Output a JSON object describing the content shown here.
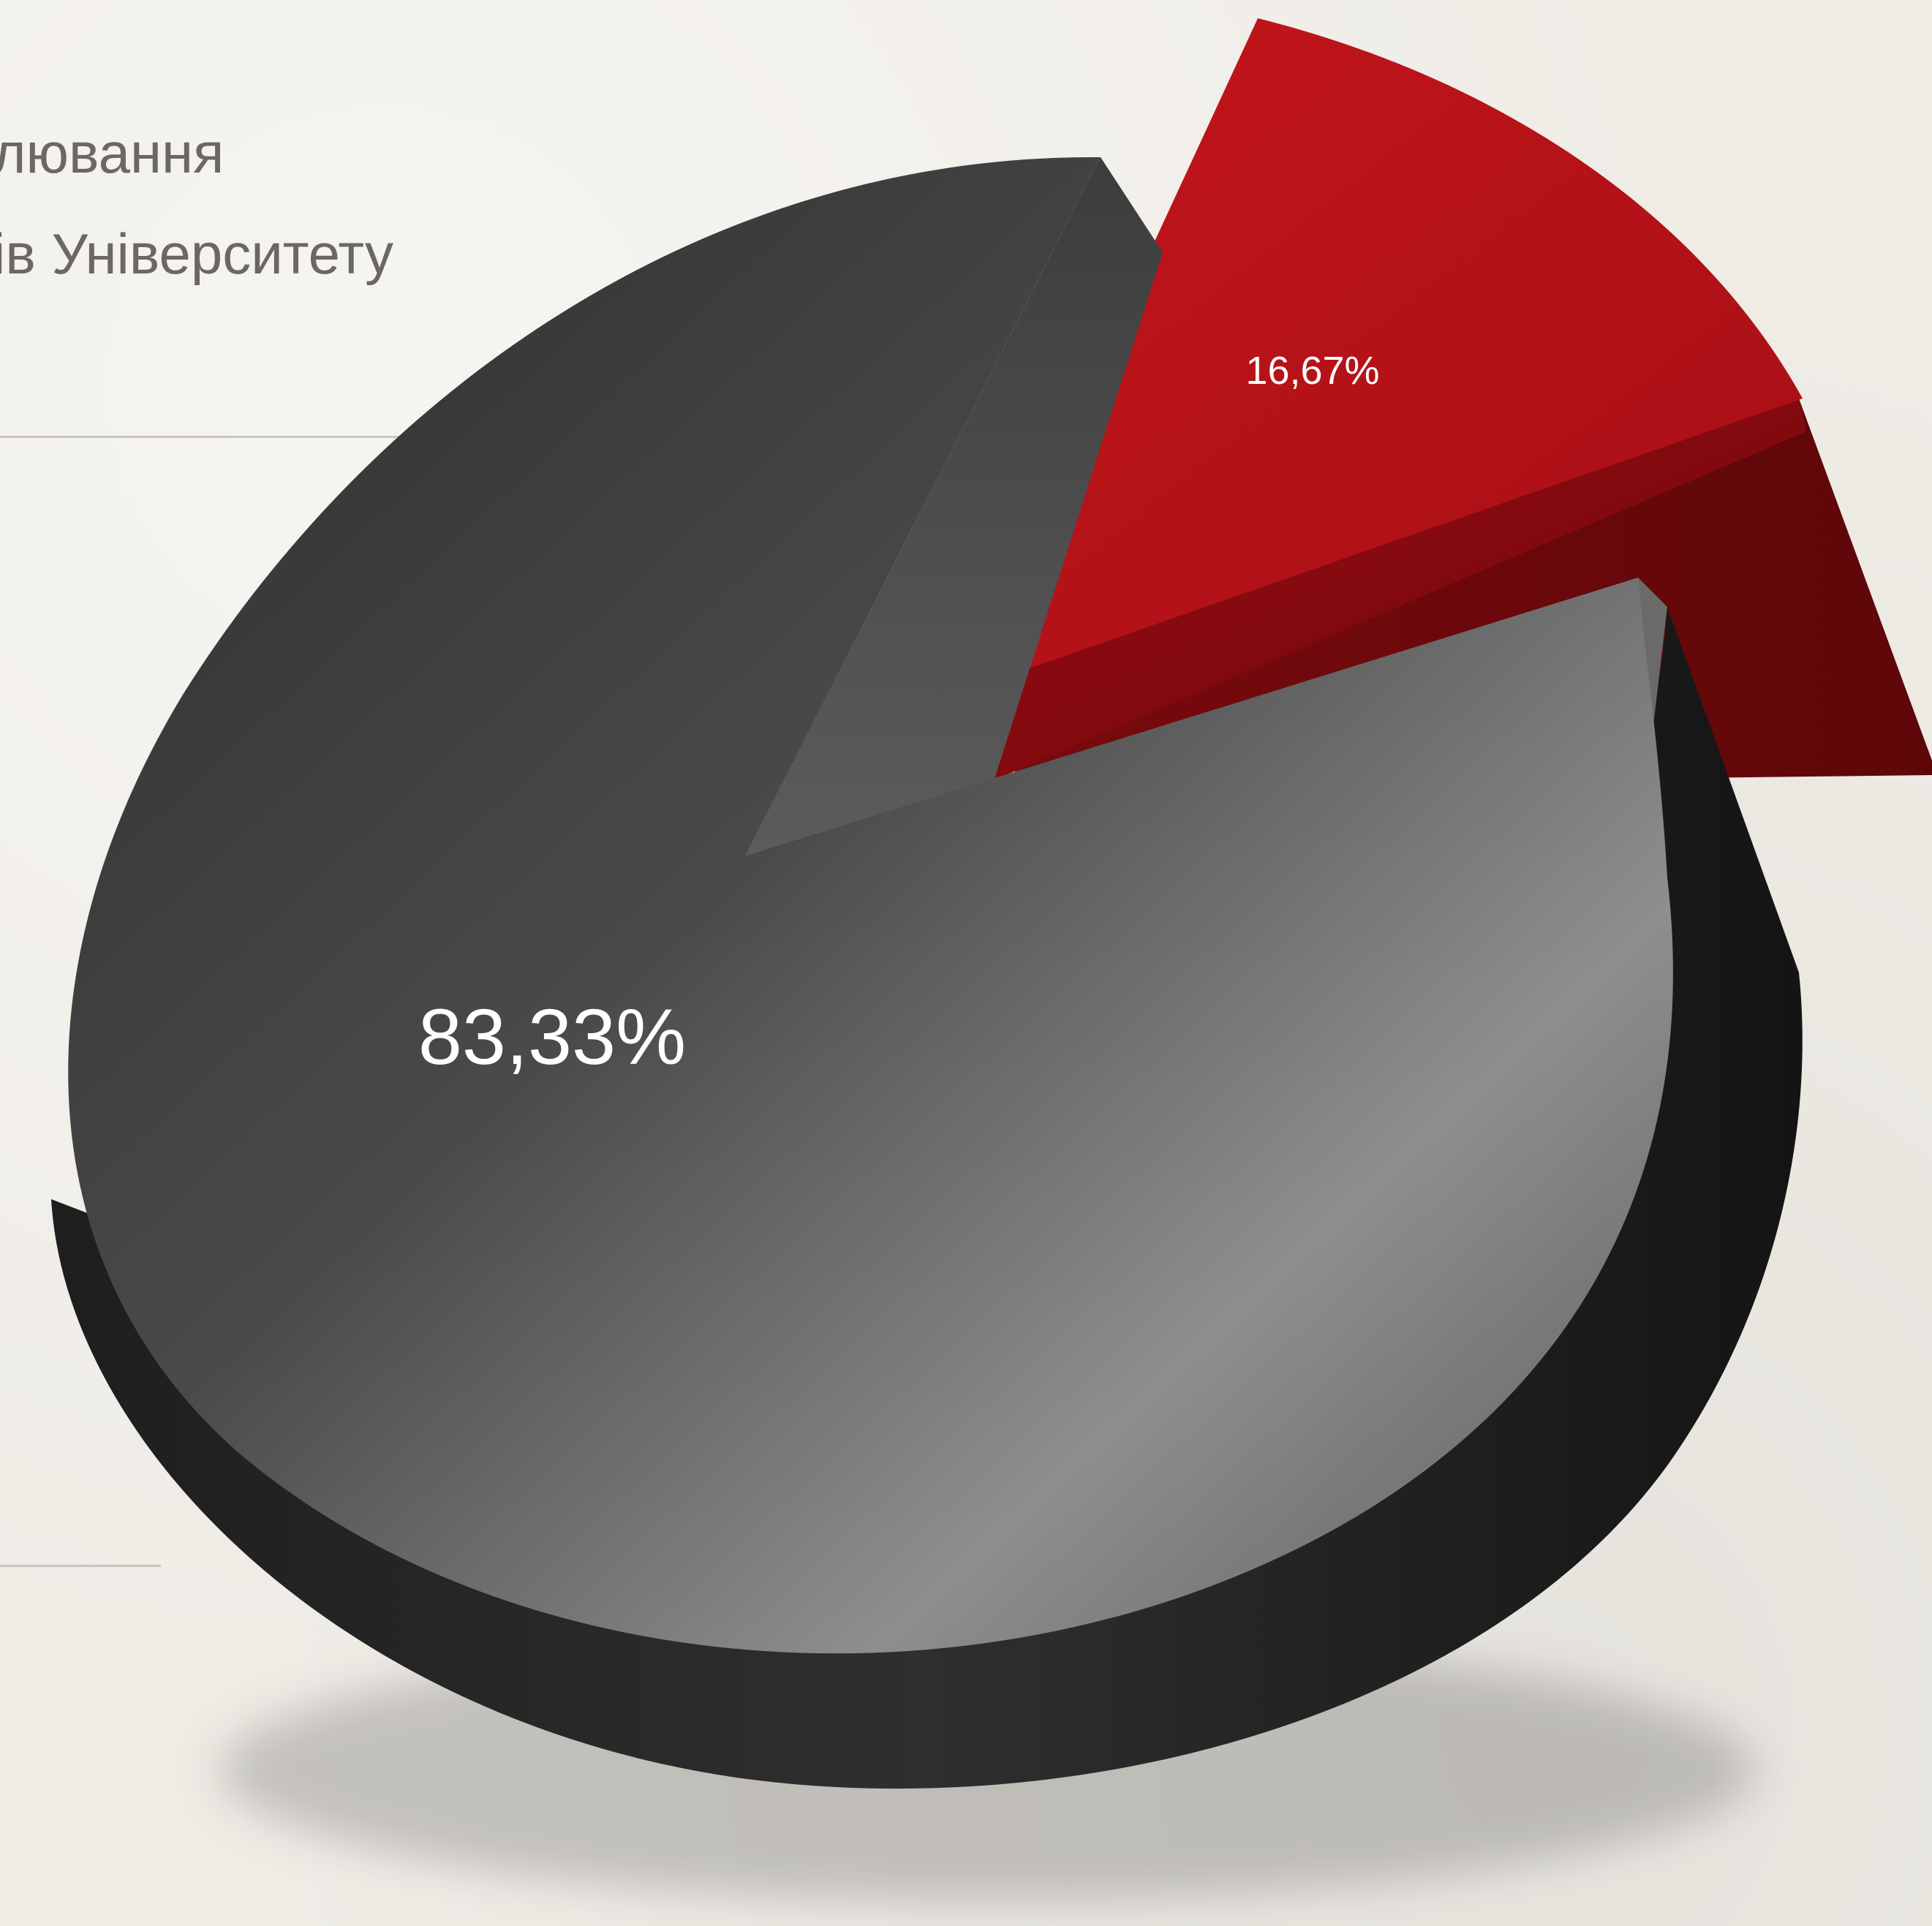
{
  "chart_data": {
    "type": "pie",
    "title_lines": [
      "лювання",
      "ів Університету"
    ],
    "slices": [
      {
        "label": "83,33%",
        "value": 83.33,
        "color": "#3a3a3a"
      },
      {
        "label": "16,67%",
        "value": 16.67,
        "color": "#b3141a"
      }
    ],
    "style": "3d-exploded",
    "legend": "none"
  }
}
